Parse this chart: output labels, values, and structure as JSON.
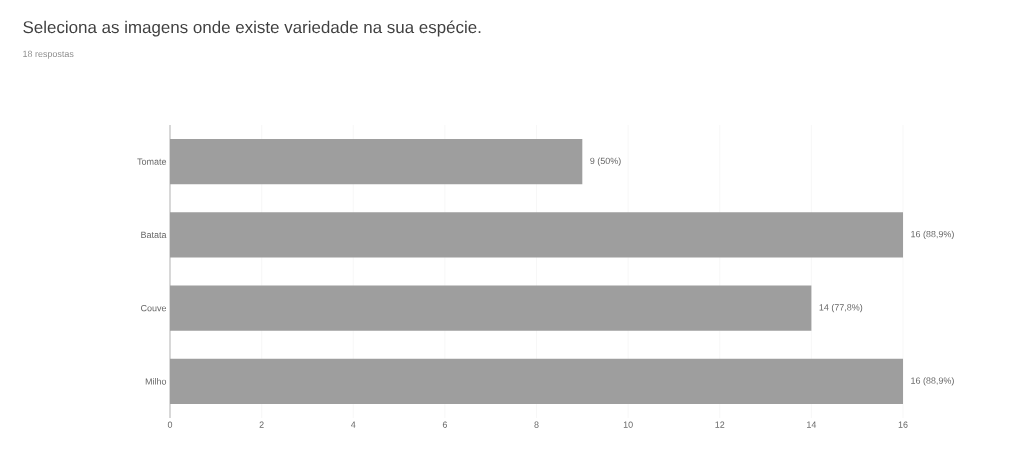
{
  "chart_data": {
    "type": "bar",
    "orientation": "horizontal",
    "title": "Seleciona as imagens onde existe variedade na sua espécie.",
    "subtitle": "18 respostas",
    "categories": [
      "Tomate",
      "Batata",
      "Couve",
      "Milho"
    ],
    "values": [
      9,
      16,
      14,
      16
    ],
    "value_labels": [
      "9 (50%)",
      "16 (88,9%)",
      "14 (77,8%)",
      "16 (88,9%)"
    ],
    "color": "#9e9e9e",
    "xlim": [
      0,
      16
    ],
    "xticks": [
      0,
      2,
      4,
      6,
      8,
      10,
      12,
      14,
      16
    ],
    "grid": "x"
  }
}
